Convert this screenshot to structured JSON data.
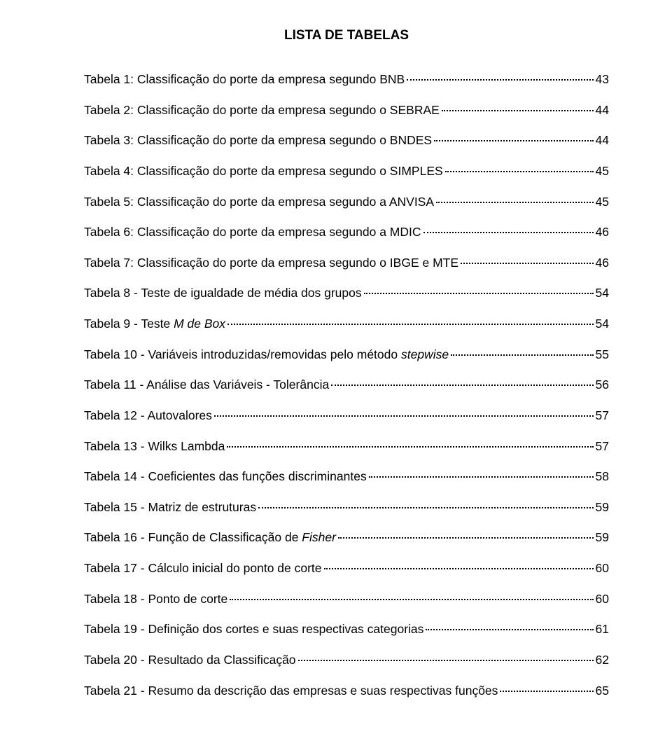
{
  "title": "LISTA DE TABELAS",
  "entries": [
    {
      "label": "Tabela 1: Classificação do porte da empresa segundo BNB",
      "page": "43"
    },
    {
      "label": "Tabela 2: Classificação do porte da empresa segundo o SEBRAE",
      "page": "44"
    },
    {
      "label": "Tabela 3: Classificação do porte da empresa segundo o BNDES",
      "page": "44"
    },
    {
      "label": "Tabela 4: Classificação do porte da empresa segundo o SIMPLES",
      "page": "45"
    },
    {
      "label": "Tabela 5: Classificação do porte da empresa segundo a ANVISA",
      "page": "45"
    },
    {
      "label": "Tabela 6: Classificação do porte da empresa segundo a MDIC",
      "page": "46"
    },
    {
      "label": "Tabela 7: Classificação do porte da empresa segundo o IBGE e MTE",
      "page": "46"
    },
    {
      "label": "Tabela 8 - Teste de igualdade de média dos grupos",
      "page": "54"
    },
    {
      "label": "Tabela 9 - Teste ",
      "italic": "M de Box",
      "page": "54"
    },
    {
      "label": "Tabela 10 - Variáveis introduzidas/removidas pelo método ",
      "italic": "stepwise",
      "page": "55"
    },
    {
      "label": "Tabela 11 - Análise das Variáveis - Tolerância",
      "page": "56"
    },
    {
      "label": "Tabela 12 - Autovalores",
      "page": "57"
    },
    {
      "label": "Tabela 13 - Wilks Lambda",
      "page": "57"
    },
    {
      "label": "Tabela 14 - Coeficientes das funções discriminantes",
      "page": "58"
    },
    {
      "label": "Tabela 15 - Matriz de estruturas",
      "page": "59"
    },
    {
      "label": "Tabela 16 - Função de Classificação de ",
      "italic": "Fisher",
      "page": "59"
    },
    {
      "label": "Tabela 17 - Cálculo inicial do ponto de corte",
      "page": "60"
    },
    {
      "label": "Tabela 18 - Ponto de corte",
      "page": "60"
    },
    {
      "label": "Tabela 19 - Definição dos cortes e suas respectivas categorias",
      "page": "61"
    },
    {
      "label": "Tabela 20 - Resultado da Classificação",
      "page": "62"
    },
    {
      "label": "Tabela 21 - Resumo da descrição das empresas e suas respectivas funções",
      "page": "65"
    }
  ]
}
